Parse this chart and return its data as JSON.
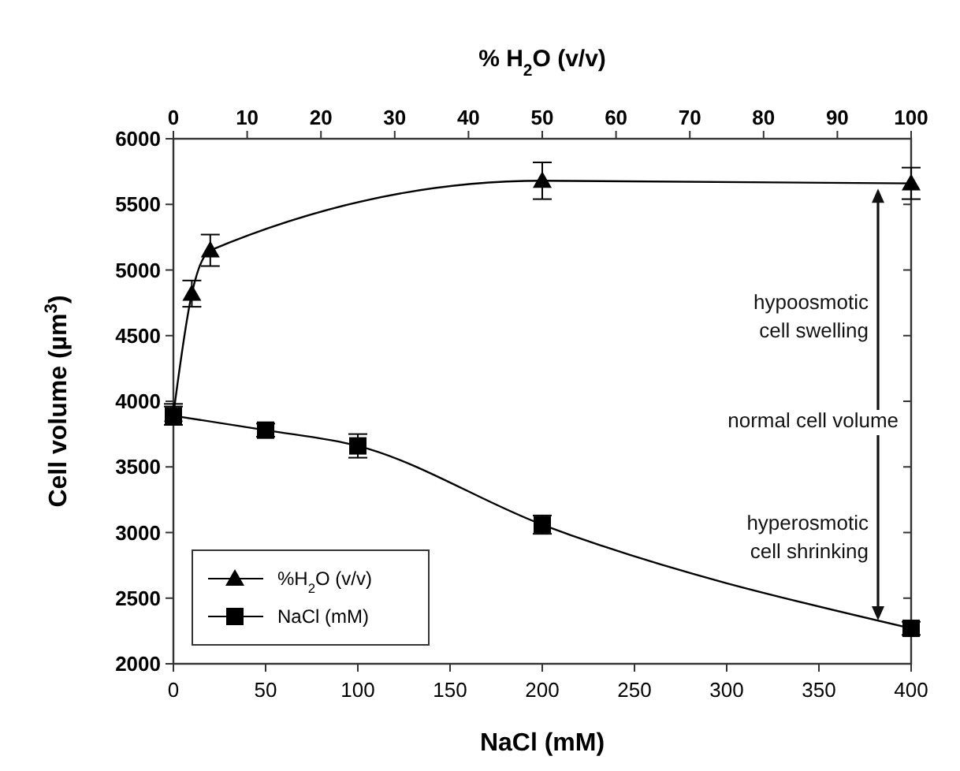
{
  "chart_data": {
    "type": "line",
    "xlabel": "NaCl (mM)",
    "x2label": "% H$_{2}$O (v/v)",
    "ylabel": "Cell volume (µm$^{3}$)",
    "xlim": [
      0,
      400
    ],
    "xticks": [
      0,
      50,
      100,
      150,
      200,
      250,
      300,
      350,
      400
    ],
    "x2lim": [
      0,
      100
    ],
    "x2ticks": [
      0,
      10,
      20,
      30,
      40,
      50,
      60,
      70,
      80,
      90,
      100
    ],
    "ylim": [
      2000,
      6000
    ],
    "yticks": [
      2000,
      2500,
      3000,
      3500,
      4000,
      4500,
      5000,
      5500,
      6000
    ],
    "series": [
      {
        "name": "%H$_{2}$O (v/v)",
        "color": "#000000",
        "marker": "triangle",
        "axis": "x2",
        "x": [
          0,
          2.5,
          5,
          50,
          100
        ],
        "values": [
          3900,
          4820,
          5150,
          5680,
          5660
        ],
        "errors": [
          80,
          100,
          120,
          140,
          120
        ]
      },
      {
        "name": "NaCl (mM)",
        "color": "#000000",
        "marker": "square",
        "x": [
          0,
          50,
          100,
          200,
          400
        ],
        "values": [
          3890,
          3780,
          3660,
          3060,
          2270
        ],
        "errors": [
          70,
          50,
          90,
          70,
          50
        ]
      }
    ],
    "annotations": [
      "hypoosmotic\ncell swelling",
      "normal cell volume",
      "hyperosmotic\ncell shrinking"
    ],
    "legend": "bottom left",
    "grid": false
  }
}
